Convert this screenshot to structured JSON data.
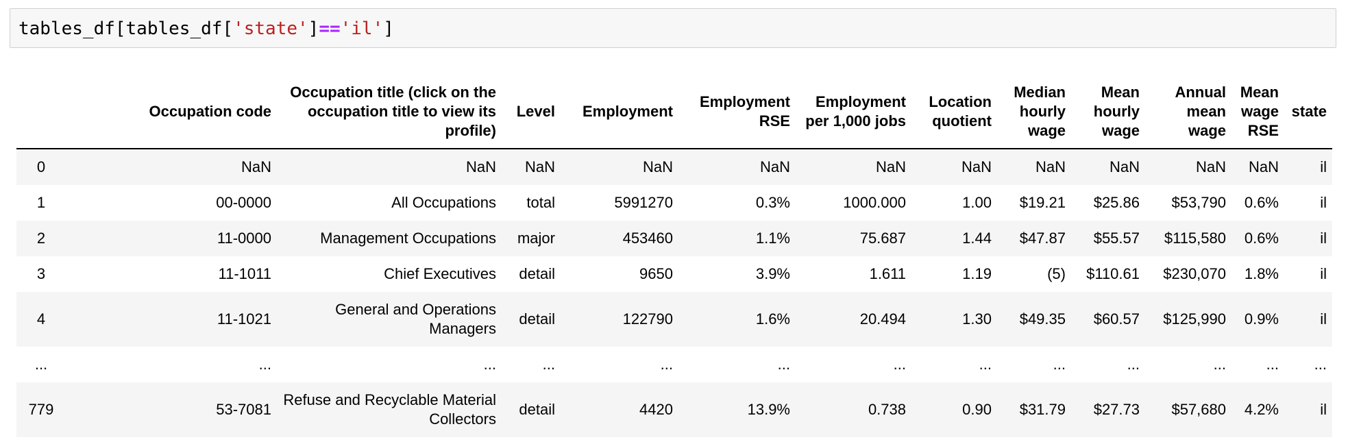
{
  "code": {
    "parts": [
      {
        "text": "tables_df[tables_df[",
        "kind": "plain"
      },
      {
        "text": "'state'",
        "kind": "str"
      },
      {
        "text": "]",
        "kind": "plain"
      },
      {
        "text": "==",
        "kind": "op"
      },
      {
        "text": "'il'",
        "kind": "str"
      },
      {
        "text": "]",
        "kind": "plain"
      }
    ]
  },
  "table": {
    "index_header": "",
    "columns": [
      "Occupation code",
      "Occupation title (click on the occupation title to view its profile)",
      "Level",
      "Employment",
      "Employment RSE",
      "Employment per 1,000 jobs",
      "Location quotient",
      "Median hourly wage",
      "Mean hourly wage",
      "Annual mean wage",
      "Mean wage RSE",
      "state"
    ],
    "rows": [
      {
        "index": "0",
        "cells": [
          "NaN",
          "NaN",
          "NaN",
          "NaN",
          "NaN",
          "NaN",
          "NaN",
          "NaN",
          "NaN",
          "NaN",
          "NaN",
          "il"
        ]
      },
      {
        "index": "1",
        "cells": [
          "00-0000",
          "All Occupations",
          "total",
          "5991270",
          "0.3%",
          "1000.000",
          "1.00",
          "$19.21",
          "$25.86",
          "$53,790",
          "0.6%",
          "il"
        ]
      },
      {
        "index": "2",
        "cells": [
          "11-0000",
          "Management Occupations",
          "major",
          "453460",
          "1.1%",
          "75.687",
          "1.44",
          "$47.87",
          "$55.57",
          "$115,580",
          "0.6%",
          "il"
        ]
      },
      {
        "index": "3",
        "cells": [
          "11-1011",
          "Chief Executives",
          "detail",
          "9650",
          "3.9%",
          "1.611",
          "1.19",
          "(5)",
          "$110.61",
          "$230,070",
          "1.8%",
          "il"
        ]
      },
      {
        "index": "4",
        "cells": [
          "11-1021",
          "General and Operations Managers",
          "detail",
          "122790",
          "1.6%",
          "20.494",
          "1.30",
          "$49.35",
          "$60.57",
          "$125,990",
          "0.9%",
          "il"
        ]
      },
      {
        "index": "...",
        "cells": [
          "...",
          "...",
          "...",
          "...",
          "...",
          "...",
          "...",
          "...",
          "...",
          "...",
          "...",
          "..."
        ]
      },
      {
        "index": "779",
        "cells": [
          "53-7081",
          "Refuse and Recyclable Material Collectors",
          "detail",
          "4420",
          "13.9%",
          "0.738",
          "0.90",
          "$31.79",
          "$27.73",
          "$57,680",
          "4.2%",
          "il"
        ]
      }
    ]
  }
}
